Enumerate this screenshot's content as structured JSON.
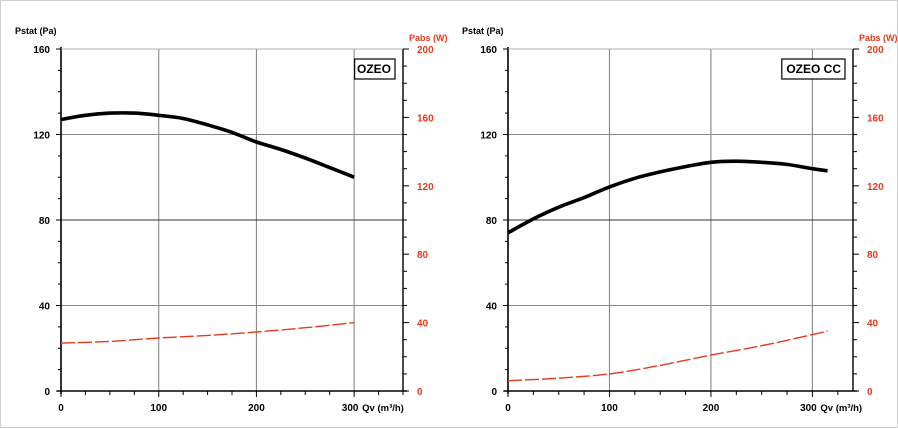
{
  "chart_data": [
    {
      "type": "line",
      "plot_label": "OZEO",
      "ylabel": "Pstat (Pa)",
      "y2label": "Pabs (W)",
      "xlabel": "Qv (m³/h)",
      "xlim": [
        0,
        350
      ],
      "ylim": [
        0,
        160
      ],
      "y2lim": [
        0,
        200
      ],
      "x_ticks": [
        0,
        100,
        200,
        300
      ],
      "y_ticks": [
        0,
        40,
        80,
        120,
        160
      ],
      "y2_ticks": [
        0,
        40,
        80,
        120,
        160,
        200
      ],
      "x_tick_labels": [
        "0",
        "100",
        "200",
        "300"
      ],
      "y_tick_labels": [
        "0",
        "40",
        "80",
        "120",
        "160"
      ],
      "y2_tick_labels": [
        "0",
        "40",
        "80",
        "120",
        "160",
        "200"
      ],
      "grid": true,
      "colors": {
        "pressure": "#000000",
        "power": "#e8391d"
      },
      "series": [
        {
          "axis": "left",
          "style": "solid",
          "x": [
            0,
            25,
            50,
            75,
            100,
            125,
            150,
            175,
            200,
            225,
            250,
            275,
            300
          ],
          "y": [
            127,
            129,
            130,
            130,
            129,
            127.5,
            124.5,
            121,
            116.5,
            113,
            109,
            104.5,
            100
          ]
        },
        {
          "axis": "right",
          "style": "dashed",
          "x": [
            0,
            50,
            100,
            150,
            200,
            250,
            300
          ],
          "y": [
            28,
            29,
            31,
            32.5,
            34.5,
            37,
            40
          ]
        }
      ]
    },
    {
      "type": "line",
      "plot_label": "OZEO CC",
      "ylabel": "Pstat (Pa)",
      "y2label": "Pabs (W)",
      "xlabel": "Qv (m³/h)",
      "xlim": [
        0,
        340
      ],
      "ylim": [
        0,
        160
      ],
      "y2lim": [
        0,
        200
      ],
      "x_ticks": [
        0,
        100,
        200,
        300
      ],
      "y_ticks": [
        0,
        40,
        80,
        120,
        160
      ],
      "y2_ticks": [
        0,
        40,
        80,
        120,
        160,
        200
      ],
      "x_tick_labels": [
        "0",
        "100",
        "200",
        "300"
      ],
      "y_tick_labels": [
        "0",
        "40",
        "80",
        "120",
        "160"
      ],
      "y2_tick_labels": [
        "0",
        "40",
        "80",
        "120",
        "160",
        "200"
      ],
      "grid": true,
      "colors": {
        "pressure": "#000000",
        "power": "#e8391d"
      },
      "series": [
        {
          "axis": "left",
          "style": "solid",
          "x": [
            0,
            25,
            50,
            75,
            100,
            125,
            150,
            175,
            200,
            225,
            250,
            275,
            300,
            315
          ],
          "y": [
            74,
            80.5,
            86,
            90.5,
            95.5,
            99.5,
            102.5,
            105,
            107,
            107.5,
            107,
            106,
            104,
            103
          ]
        },
        {
          "axis": "right",
          "style": "dashed",
          "x": [
            0,
            50,
            100,
            150,
            200,
            250,
            300,
            315
          ],
          "y": [
            6,
            7.5,
            10,
            15,
            21,
            26.5,
            33,
            35
          ]
        }
      ]
    }
  ]
}
